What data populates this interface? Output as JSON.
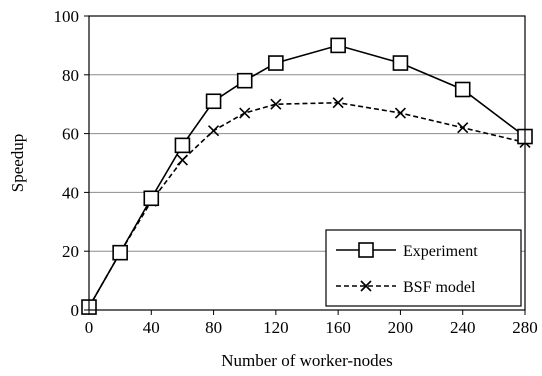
{
  "chart_data": {
    "type": "line",
    "xlabel": "Number of worker-nodes",
    "ylabel": "Speedup",
    "xlim": [
      0,
      280
    ],
    "ylim": [
      0,
      100
    ],
    "x_ticks": [
      0,
      40,
      80,
      120,
      160,
      200,
      240,
      280
    ],
    "y_ticks": [
      0,
      20,
      40,
      60,
      80,
      100
    ],
    "grid": "horizontal",
    "legend_position": "bottom-right",
    "series": [
      {
        "name": "Experiment",
        "marker": "square",
        "line": "solid",
        "x": [
          0,
          20,
          40,
          60,
          80,
          100,
          120,
          160,
          200,
          240,
          280
        ],
        "y": [
          1,
          19.5,
          38,
          56,
          71,
          78,
          84,
          90,
          84,
          75,
          59
        ]
      },
      {
        "name": "BSF model",
        "marker": "x",
        "line": "dashed",
        "x": [
          0,
          20,
          40,
          60,
          80,
          100,
          120,
          160,
          200,
          240,
          280
        ],
        "y": [
          1,
          19.5,
          37,
          51,
          61,
          67,
          70,
          70.5,
          67,
          62,
          57
        ]
      }
    ]
  }
}
